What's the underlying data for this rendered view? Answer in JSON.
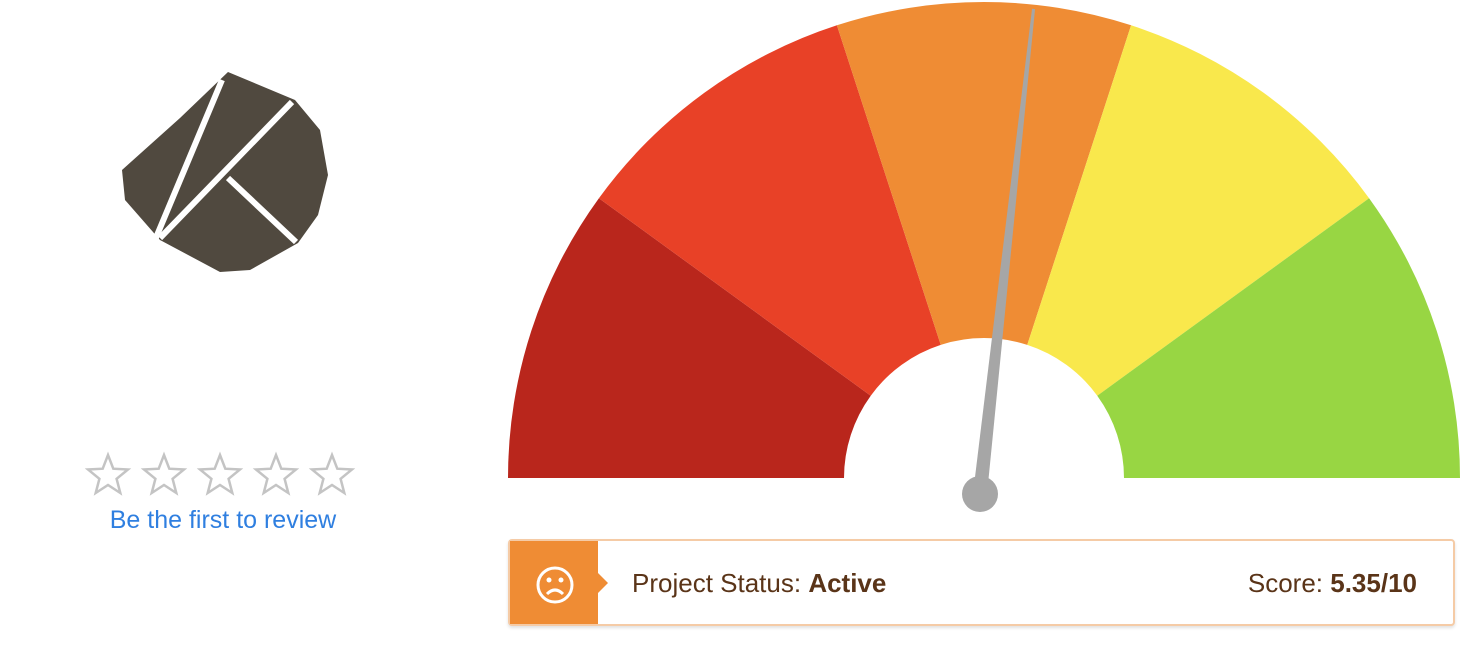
{
  "review_link": "Be the first to review",
  "status": {
    "label": "Project Status:",
    "value": "Active"
  },
  "score": {
    "label": "Score:",
    "value": 5.35,
    "max": 10,
    "text": "5.35/10"
  }
}
